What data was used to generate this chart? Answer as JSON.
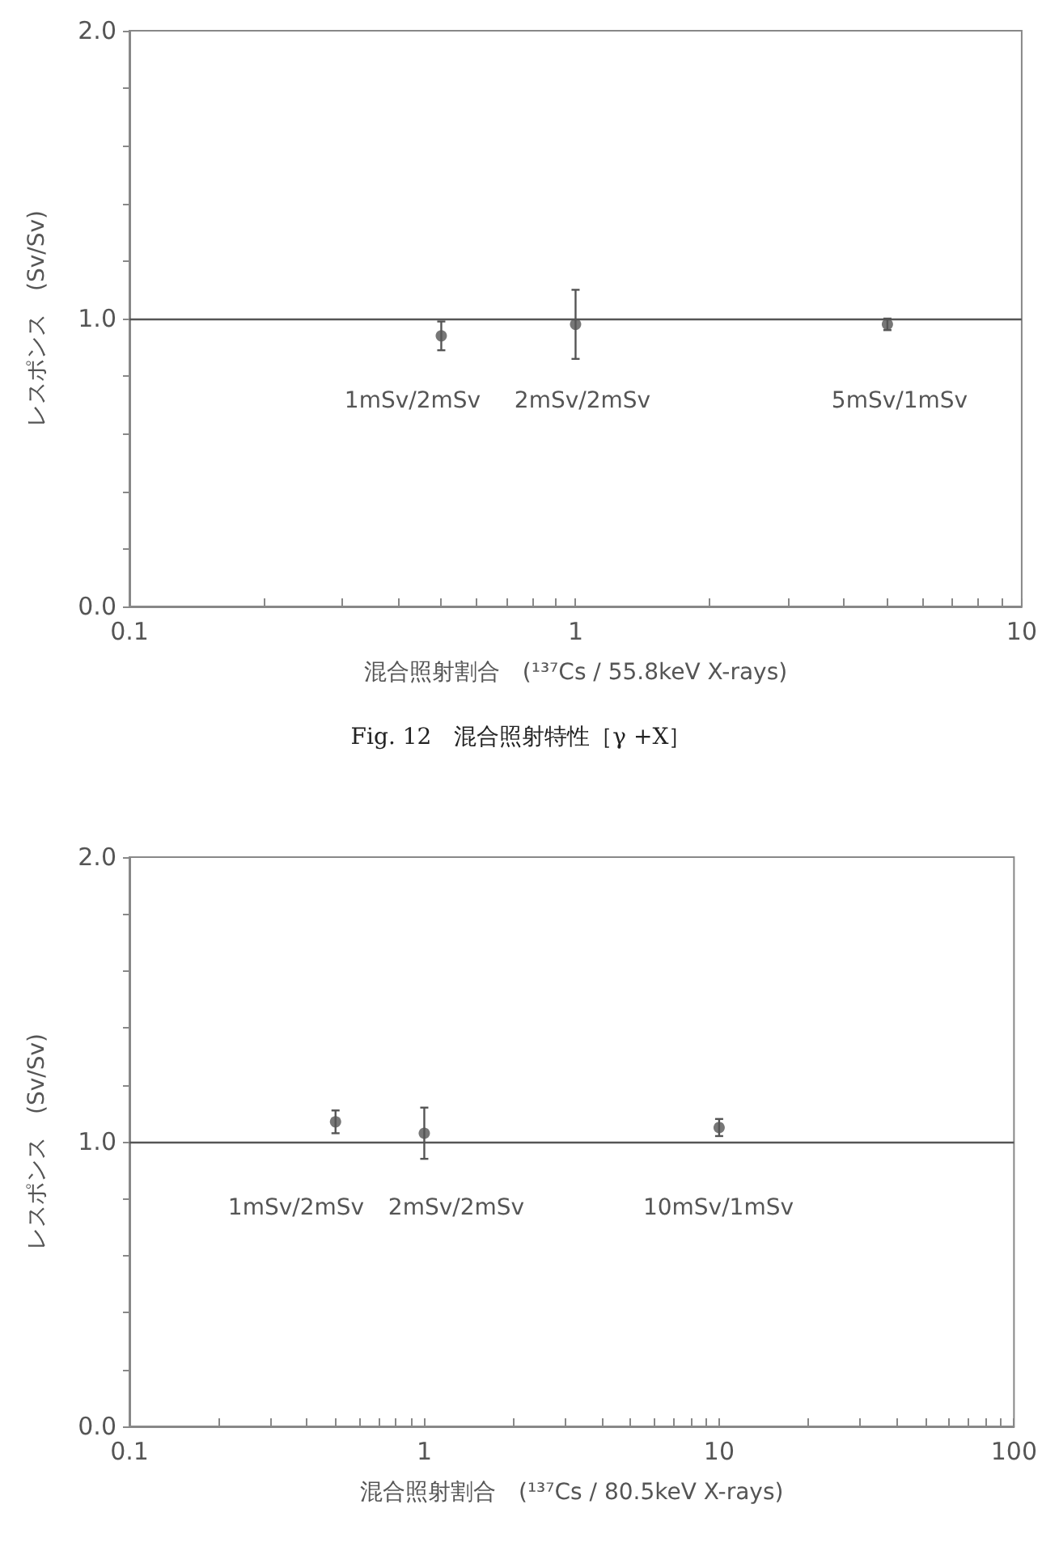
{
  "chart_data": [
    {
      "type": "scatter",
      "xlabel": "混合照射割合　(¹³⁷Cs / 55.8keV X-rays)",
      "ylabel": "レスポンス　(Sv/Sv)",
      "log": "x",
      "marker": "circle",
      "grid": false,
      "x": [
        0.5,
        1,
        5
      ],
      "series": [
        {
          "color": "#555555",
          "values": [
            0.94,
            0.98,
            0.98
          ],
          "errors": [
            0.05,
            0.12,
            0.02
          ]
        }
      ],
      "xlim": [
        0.1,
        10
      ],
      "xticks": [
        0.1,
        {
          "value": 0.2,
          "label": null
        },
        {
          "value": 0.3,
          "label": null
        },
        {
          "value": 0.4,
          "label": null
        },
        {
          "value": 0.5,
          "label": null
        },
        {
          "value": 0.6,
          "label": null
        },
        {
          "value": 0.7,
          "label": null
        },
        {
          "value": 0.8,
          "label": null
        },
        {
          "value": 0.9,
          "label": null
        },
        1,
        {
          "value": 2,
          "label": null
        },
        {
          "value": 3,
          "label": null
        },
        {
          "value": 4,
          "label": null
        },
        {
          "value": 5,
          "label": null
        },
        {
          "value": 6,
          "label": null
        },
        {
          "value": 7,
          "label": null
        },
        {
          "value": 8,
          "label": null
        },
        {
          "value": 9,
          "label": null
        },
        10
      ],
      "ylim": [
        0,
        2
      ],
      "yticks": [
        {
          "value": 0,
          "label": "0.0"
        },
        {
          "value": 0.2,
          "label": null
        },
        {
          "value": 0.4,
          "label": null
        },
        {
          "value": 0.6,
          "label": null
        },
        {
          "value": 0.8,
          "label": null
        },
        {
          "value": 1,
          "label": "1.0"
        },
        {
          "value": 1.2,
          "label": null
        },
        {
          "value": 1.4,
          "label": null
        },
        {
          "value": 1.6,
          "label": null
        },
        {
          "value": 1.8,
          "label": null
        },
        {
          "value": 2,
          "label": "2.0"
        }
      ],
      "ref_lines": [
        {
          "axis": "y",
          "value": 1,
          "color": "#555555"
        }
      ],
      "annotations": [
        "1mSv/2mSv",
        "2mSv/2mSv",
        "5mSv/1mSv",
        "Fig. 12　混合照射特性［γ +X］"
      ]
    },
    {
      "type": "scatter",
      "xlabel": "混合照射割合　(¹³⁷Cs / 80.5keV X-rays)",
      "ylabel": "レスポンス　(Sv/Sv)",
      "log": "x",
      "marker": "circle",
      "grid": false,
      "x": [
        0.5,
        1,
        10
      ],
      "series": [
        {
          "color": "#555555",
          "values": [
            1.07,
            1.03,
            1.05
          ],
          "errors": [
            0.04,
            0.09,
            0.03
          ]
        }
      ],
      "xlim": [
        0.1,
        100
      ],
      "xticks": [
        0.1,
        {
          "value": 0.2,
          "label": null
        },
        {
          "value": 0.3,
          "label": null
        },
        {
          "value": 0.4,
          "label": null
        },
        {
          "value": 0.5,
          "label": null
        },
        {
          "value": 0.6,
          "label": null
        },
        {
          "value": 0.7,
          "label": null
        },
        {
          "value": 0.8,
          "label": null
        },
        {
          "value": 0.9,
          "label": null
        },
        1,
        {
          "value": 2,
          "label": null
        },
        {
          "value": 3,
          "label": null
        },
        {
          "value": 4,
          "label": null
        },
        {
          "value": 5,
          "label": null
        },
        {
          "value": 6,
          "label": null
        },
        {
          "value": 7,
          "label": null
        },
        {
          "value": 8,
          "label": null
        },
        {
          "value": 9,
          "label": null
        },
        10,
        {
          "value": 20,
          "label": null
        },
        {
          "value": 30,
          "label": null
        },
        {
          "value": 40,
          "label": null
        },
        {
          "value": 50,
          "label": null
        },
        {
          "value": 60,
          "label": null
        },
        {
          "value": 70,
          "label": null
        },
        {
          "value": 80,
          "label": null
        },
        {
          "value": 90,
          "label": null
        },
        100
      ],
      "ylim": [
        0,
        2
      ],
      "yticks": [
        {
          "value": 0,
          "label": "0.0"
        },
        {
          "value": 0.2,
          "label": null
        },
        {
          "value": 0.4,
          "label": null
        },
        {
          "value": 0.6,
          "label": null
        },
        {
          "value": 0.8,
          "label": null
        },
        {
          "value": 1,
          "label": "1.0"
        },
        {
          "value": 1.2,
          "label": null
        },
        {
          "value": 1.4,
          "label": null
        },
        {
          "value": 1.6,
          "label": null
        },
        {
          "value": 1.8,
          "label": null
        },
        {
          "value": 2,
          "label": "2.0"
        }
      ],
      "ref_lines": [
        {
          "axis": "y",
          "value": 1,
          "color": "#555555"
        }
      ],
      "annotations": [
        "1mSv/2mSv",
        "2mSv/2mSv",
        "10mSv/1mSv"
      ]
    }
  ]
}
